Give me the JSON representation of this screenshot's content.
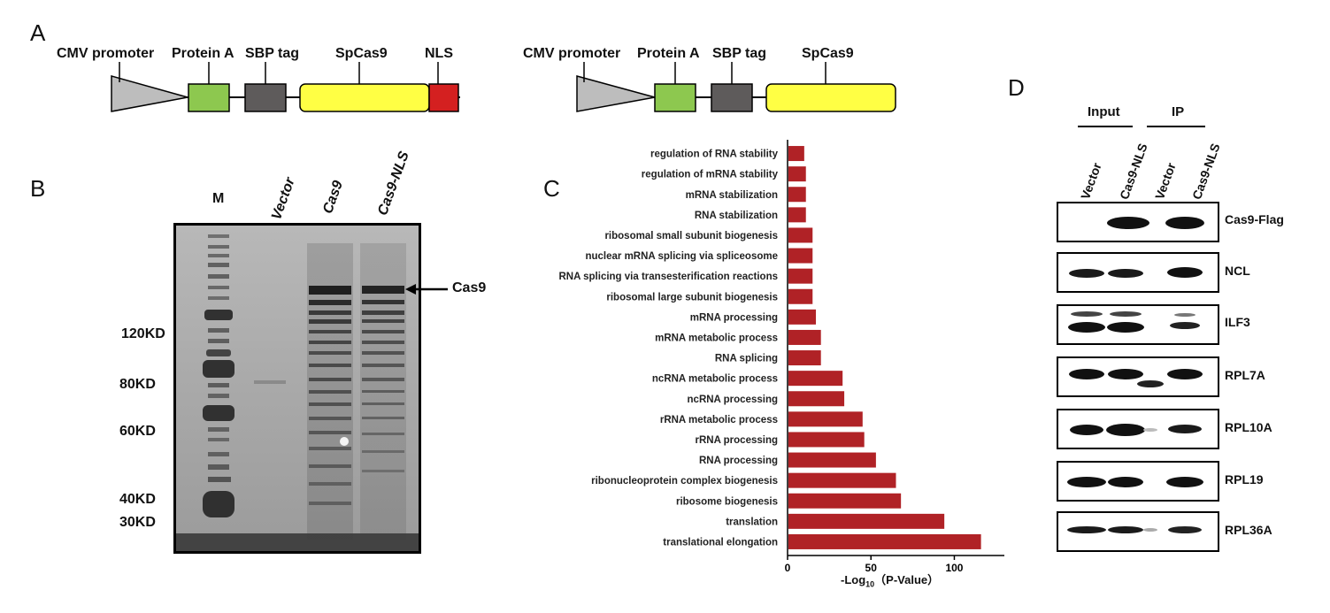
{
  "panels": {
    "a": "A",
    "b": "B",
    "c": "C",
    "d": "D"
  },
  "construct_a": {
    "labels": [
      "CMV promoter",
      "Protein A",
      "SBP tag",
      "SpCas9",
      "NLS"
    ]
  },
  "construct_b": {
    "labels": [
      "CMV promoter",
      "Protein A",
      "SBP tag",
      "SpCas9"
    ]
  },
  "colors": {
    "promoter": "#bdbdbd",
    "protein_a": "#8dc84f",
    "sbp_tag": "#5e5b5b",
    "spcas9": "#ffff44",
    "nls": "#d42020",
    "bar": "#b02226"
  },
  "gel": {
    "lanes": [
      "M",
      "Vector",
      "Cas9",
      "Cas9-NLS"
    ],
    "markers": [
      "120KD",
      "80KD",
      "60KD",
      "40KD",
      "30KD"
    ],
    "arrow_label": "Cas9"
  },
  "chart_data": {
    "type": "bar",
    "orientation": "horizontal",
    "categories": [
      "regulation of RNA stability",
      "regulation of mRNA stability",
      "mRNA stabilization",
      "RNA stabilization",
      "ribosomal small subunit biogenesis",
      "nuclear mRNA splicing via spliceosome",
      "RNA splicing via transesterification reactions",
      "ribosomal large subunit biogenesis",
      "mRNA processing",
      "mRNA metabolic process",
      "RNA splicing",
      "ncRNA metabolic process",
      "ncRNA processing",
      "rRNA metabolic process",
      "rRNA processing",
      "RNA processing",
      "ribonucleoprotein complex biogenesis",
      "ribosome biogenesis",
      "translation",
      "translational elongation"
    ],
    "values": [
      10,
      11,
      11,
      11,
      15,
      15,
      15,
      15,
      17,
      20,
      20,
      33,
      34,
      45,
      46,
      53,
      65,
      68,
      94,
      116
    ],
    "xlabel": "-Log10（P-Value）",
    "xlabel_main": "-Log",
    "xlabel_sub": "10",
    "xlabel_tail": "（P-Value）",
    "xticks": [
      "0",
      "50",
      "100"
    ],
    "xlim": [
      0,
      130
    ]
  },
  "blot": {
    "groups": [
      "Input",
      "IP"
    ],
    "lanes": [
      "Vector",
      "Cas9-NLS",
      "Vector",
      "Cas9-NLS"
    ],
    "rows": [
      "Cas9-Flag",
      "NCL",
      "ILF3",
      "RPL7A",
      "RPL10A",
      "RPL19",
      "RPL36A"
    ]
  }
}
